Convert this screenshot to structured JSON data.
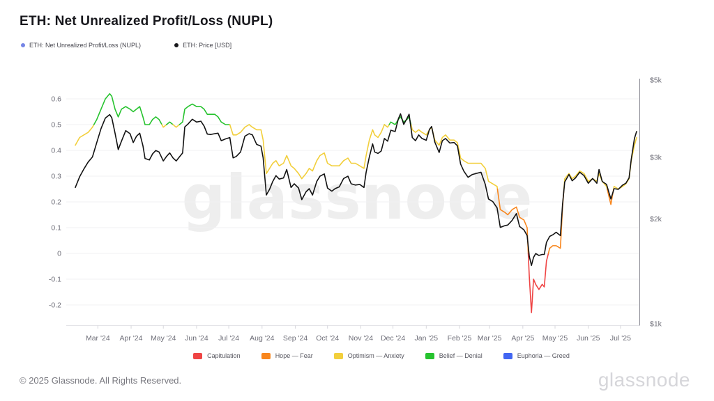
{
  "header": {
    "title": "ETH: Net Unrealized Profit/Loss (NUPL)"
  },
  "top_legend": [
    {
      "label": "ETH: Net Unrealized Profit/Loss (NUPL)",
      "color": "#7585e6"
    },
    {
      "label": "ETH: Price [USD]",
      "color": "#18181b"
    }
  ],
  "watermark": "glassnode",
  "footer": {
    "copyright": "© 2025 Glassnode. All Rights Reserved.",
    "brand": "glassnode"
  },
  "chart_data": {
    "type": "line",
    "title": "ETH: Net Unrealized Profit/Loss (NUPL)",
    "x_start": "2024-02-09",
    "x_end": "2025-07-16",
    "left_axis": {
      "label": "NUPL",
      "ticks": [
        {
          "value": 0.6,
          "label": "0.6"
        },
        {
          "value": 0.5,
          "label": "0.5"
        },
        {
          "value": 0.4,
          "label": "0.4"
        },
        {
          "value": 0.3,
          "label": "0.3"
        },
        {
          "value": 0.2,
          "label": "0.2"
        },
        {
          "value": 0.1,
          "label": "0.1"
        },
        {
          "value": 0,
          "label": "0"
        },
        {
          "value": -0.1,
          "label": "-0.1"
        },
        {
          "value": -0.2,
          "label": "-0.2"
        }
      ]
    },
    "right_axis": {
      "label": "ETH: Price [USD]",
      "scale": "log",
      "ticks": [
        {
          "value": 5000,
          "label": "$5k"
        },
        {
          "value": 3000,
          "label": "$3k"
        },
        {
          "value": 2000,
          "label": "$2k"
        },
        {
          "value": 1000,
          "label": "$1k"
        }
      ]
    },
    "x_month_ticks": [
      {
        "date": "2024-03-01",
        "label": "Mar '24"
      },
      {
        "date": "2024-04-01",
        "label": "Apr '24"
      },
      {
        "date": "2024-05-01",
        "label": "May '24"
      },
      {
        "date": "2024-06-01",
        "label": "Jun '24"
      },
      {
        "date": "2024-07-01",
        "label": "Jul '24"
      },
      {
        "date": "2024-08-01",
        "label": "Aug '24"
      },
      {
        "date": "2024-09-01",
        "label": "Sep '24"
      },
      {
        "date": "2024-10-01",
        "label": "Oct '24"
      },
      {
        "date": "2024-11-01",
        "label": "Nov '24"
      },
      {
        "date": "2024-12-01",
        "label": "Dec '24"
      },
      {
        "date": "2025-01-01",
        "label": "Jan '25"
      },
      {
        "date": "2025-02-01",
        "label": "Feb '25"
      },
      {
        "date": "2025-03-01",
        "label": "Mar '25"
      },
      {
        "date": "2025-04-01",
        "label": "Apr '25"
      },
      {
        "date": "2025-05-01",
        "label": "May '25"
      },
      {
        "date": "2025-06-01",
        "label": "Jun '25"
      },
      {
        "date": "2025-07-01",
        "label": "Jul '25"
      }
    ],
    "bands": [
      {
        "name": "Capitulation",
        "min": -1,
        "max": 0,
        "color": "#ef4444"
      },
      {
        "name": "Hope — Fear",
        "min": 0,
        "max": 0.25,
        "color": "#f8861d"
      },
      {
        "name": "Optimism — Anxiety",
        "min": 0.25,
        "max": 0.5,
        "color": "#f2cf3c"
      },
      {
        "name": "Belief — Denial",
        "min": 0.5,
        "max": 0.75,
        "color": "#27c32f"
      },
      {
        "name": "Euphoria — Greed",
        "min": 0.75,
        "max": 1,
        "color": "#4266f2"
      }
    ],
    "price_color": "#131313",
    "series_note": "points = [date, NUPL (left axis), ETH price USD (right log axis)]",
    "points": [
      [
        "2024-02-09",
        0.42,
        2460
      ],
      [
        "2024-02-13",
        0.45,
        2640
      ],
      [
        "2024-02-17",
        0.46,
        2780
      ],
      [
        "2024-02-21",
        0.47,
        2910
      ],
      [
        "2024-02-25",
        0.49,
        3010
      ],
      [
        "2024-02-29",
        0.52,
        3310
      ],
      [
        "2024-03-04",
        0.56,
        3630
      ],
      [
        "2024-03-08",
        0.6,
        3890
      ],
      [
        "2024-03-12",
        0.62,
        3980
      ],
      [
        "2024-03-14",
        0.61,
        3900
      ],
      [
        "2024-03-17",
        0.56,
        3520
      ],
      [
        "2024-03-20",
        0.53,
        3160
      ],
      [
        "2024-03-23",
        0.56,
        3340
      ],
      [
        "2024-03-27",
        0.57,
        3580
      ],
      [
        "2024-03-31",
        0.56,
        3510
      ],
      [
        "2024-04-03",
        0.55,
        3310
      ],
      [
        "2024-04-06",
        0.56,
        3450
      ],
      [
        "2024-04-09",
        0.57,
        3520
      ],
      [
        "2024-04-12",
        0.53,
        3240
      ],
      [
        "2024-04-14",
        0.5,
        2980
      ],
      [
        "2024-04-18",
        0.5,
        2950
      ],
      [
        "2024-04-21",
        0.52,
        3070
      ],
      [
        "2024-04-24",
        0.53,
        3140
      ],
      [
        "2024-04-27",
        0.52,
        3110
      ],
      [
        "2024-05-01",
        0.49,
        2930
      ],
      [
        "2024-05-04",
        0.5,
        3020
      ],
      [
        "2024-05-07",
        0.51,
        3090
      ],
      [
        "2024-05-10",
        0.5,
        2990
      ],
      [
        "2024-05-13",
        0.49,
        2930
      ],
      [
        "2024-05-16",
        0.5,
        3010
      ],
      [
        "2024-05-19",
        0.51,
        3090
      ],
      [
        "2024-05-21",
        0.56,
        3670
      ],
      [
        "2024-05-24",
        0.57,
        3740
      ],
      [
        "2024-05-28",
        0.58,
        3860
      ],
      [
        "2024-06-01",
        0.57,
        3790
      ],
      [
        "2024-06-05",
        0.57,
        3810
      ],
      [
        "2024-06-08",
        0.56,
        3690
      ],
      [
        "2024-06-11",
        0.54,
        3500
      ],
      [
        "2024-06-14",
        0.54,
        3490
      ],
      [
        "2024-06-18",
        0.54,
        3510
      ],
      [
        "2024-06-21",
        0.53,
        3520
      ],
      [
        "2024-06-24",
        0.51,
        3350
      ],
      [
        "2024-06-28",
        0.5,
        3390
      ],
      [
        "2024-07-02",
        0.5,
        3420
      ],
      [
        "2024-07-05",
        0.46,
        2990
      ],
      [
        "2024-07-08",
        0.46,
        3020
      ],
      [
        "2024-07-12",
        0.47,
        3110
      ],
      [
        "2024-07-16",
        0.49,
        3450
      ],
      [
        "2024-07-20",
        0.5,
        3510
      ],
      [
        "2024-07-23",
        0.49,
        3480
      ],
      [
        "2024-07-27",
        0.48,
        3270
      ],
      [
        "2024-07-31",
        0.48,
        3230
      ],
      [
        "2024-08-02",
        0.44,
        2990
      ],
      [
        "2024-08-05",
        0.31,
        2340
      ],
      [
        "2024-08-08",
        0.33,
        2430
      ],
      [
        "2024-08-11",
        0.35,
        2560
      ],
      [
        "2024-08-14",
        0.36,
        2660
      ],
      [
        "2024-08-17",
        0.34,
        2600
      ],
      [
        "2024-08-21",
        0.35,
        2620
      ],
      [
        "2024-08-24",
        0.38,
        2770
      ],
      [
        "2024-08-28",
        0.34,
        2460
      ],
      [
        "2024-08-31",
        0.33,
        2520
      ],
      [
        "2024-09-04",
        0.31,
        2450
      ],
      [
        "2024-09-07",
        0.29,
        2270
      ],
      [
        "2024-09-11",
        0.31,
        2390
      ],
      [
        "2024-09-14",
        0.33,
        2440
      ],
      [
        "2024-09-17",
        0.32,
        2340
      ],
      [
        "2024-09-21",
        0.36,
        2560
      ],
      [
        "2024-09-24",
        0.38,
        2650
      ],
      [
        "2024-09-28",
        0.39,
        2690
      ],
      [
        "2024-10-01",
        0.35,
        2450
      ],
      [
        "2024-10-05",
        0.34,
        2400
      ],
      [
        "2024-10-08",
        0.34,
        2440
      ],
      [
        "2024-10-12",
        0.34,
        2470
      ],
      [
        "2024-10-16",
        0.36,
        2610
      ],
      [
        "2024-10-20",
        0.37,
        2650
      ],
      [
        "2024-10-23",
        0.35,
        2520
      ],
      [
        "2024-10-27",
        0.35,
        2500
      ],
      [
        "2024-10-31",
        0.34,
        2510
      ],
      [
        "2024-11-04",
        0.33,
        2460
      ],
      [
        "2024-11-06",
        0.38,
        2720
      ],
      [
        "2024-11-09",
        0.44,
        3010
      ],
      [
        "2024-11-12",
        0.48,
        3280
      ],
      [
        "2024-11-14",
        0.46,
        3110
      ],
      [
        "2024-11-17",
        0.45,
        3080
      ],
      [
        "2024-11-20",
        0.47,
        3130
      ],
      [
        "2024-11-23",
        0.5,
        3400
      ],
      [
        "2024-11-26",
        0.49,
        3340
      ],
      [
        "2024-11-29",
        0.51,
        3590
      ],
      [
        "2024-12-03",
        0.5,
        3560
      ],
      [
        "2024-12-06",
        0.52,
        3870
      ],
      [
        "2024-12-08",
        0.53,
        4000
      ],
      [
        "2024-12-11",
        0.51,
        3730
      ],
      [
        "2024-12-14",
        0.52,
        3880
      ],
      [
        "2024-12-16",
        0.53,
        3990
      ],
      [
        "2024-12-19",
        0.48,
        3420
      ],
      [
        "2024-12-22",
        0.47,
        3350
      ],
      [
        "2024-12-25",
        0.48,
        3480
      ],
      [
        "2024-12-28",
        0.47,
        3400
      ],
      [
        "2025-01-01",
        0.46,
        3360
      ],
      [
        "2025-01-04",
        0.48,
        3610
      ],
      [
        "2025-01-06",
        0.49,
        3680
      ],
      [
        "2025-01-09",
        0.44,
        3320
      ],
      [
        "2025-01-13",
        0.42,
        3100
      ],
      [
        "2025-01-16",
        0.45,
        3350
      ],
      [
        "2025-01-19",
        0.46,
        3400
      ],
      [
        "2025-01-23",
        0.44,
        3300
      ],
      [
        "2025-01-27",
        0.44,
        3310
      ],
      [
        "2025-01-30",
        0.43,
        3240
      ],
      [
        "2025-02-02",
        0.37,
        2870
      ],
      [
        "2025-02-05",
        0.36,
        2740
      ],
      [
        "2025-02-09",
        0.35,
        2630
      ],
      [
        "2025-02-13",
        0.35,
        2680
      ],
      [
        "2025-02-17",
        0.35,
        2700
      ],
      [
        "2025-02-21",
        0.35,
        2720
      ],
      [
        "2025-02-25",
        0.33,
        2510
      ],
      [
        "2025-02-28",
        0.28,
        2280
      ],
      [
        "2025-03-04",
        0.27,
        2240
      ],
      [
        "2025-03-08",
        0.26,
        2150
      ],
      [
        "2025-03-11",
        0.17,
        1890
      ],
      [
        "2025-03-15",
        0.16,
        1910
      ],
      [
        "2025-03-18",
        0.15,
        1920
      ],
      [
        "2025-03-22",
        0.17,
        1980
      ],
      [
        "2025-03-26",
        0.18,
        2070
      ],
      [
        "2025-03-29",
        0.14,
        1900
      ],
      [
        "2025-04-02",
        0.13,
        1860
      ],
      [
        "2025-04-05",
        0.1,
        1790
      ],
      [
        "2025-04-07",
        -0.09,
        1560
      ],
      [
        "2025-04-09",
        -0.23,
        1470
      ],
      [
        "2025-04-11",
        -0.1,
        1550
      ],
      [
        "2025-04-13",
        -0.12,
        1590
      ],
      [
        "2025-04-16",
        -0.14,
        1570
      ],
      [
        "2025-04-19",
        -0.12,
        1580
      ],
      [
        "2025-04-21",
        -0.13,
        1580
      ],
      [
        "2025-04-23",
        -0.03,
        1710
      ],
      [
        "2025-04-26",
        0.02,
        1780
      ],
      [
        "2025-04-29",
        0.03,
        1800
      ],
      [
        "2025-05-02",
        0.03,
        1830
      ],
      [
        "2025-05-06",
        0.02,
        1790
      ],
      [
        "2025-05-08",
        0.18,
        2200
      ],
      [
        "2025-05-10",
        0.29,
        2550
      ],
      [
        "2025-05-14",
        0.31,
        2680
      ],
      [
        "2025-05-17",
        0.29,
        2570
      ],
      [
        "2025-05-20",
        0.3,
        2620
      ],
      [
        "2025-05-24",
        0.32,
        2720
      ],
      [
        "2025-05-28",
        0.31,
        2660
      ],
      [
        "2025-06-01",
        0.28,
        2530
      ],
      [
        "2025-06-05",
        0.29,
        2610
      ],
      [
        "2025-06-09",
        0.28,
        2530
      ],
      [
        "2025-06-11",
        0.31,
        2770
      ],
      [
        "2025-06-14",
        0.28,
        2560
      ],
      [
        "2025-06-18",
        0.26,
        2510
      ],
      [
        "2025-06-22",
        0.19,
        2280
      ],
      [
        "2025-06-25",
        0.26,
        2440
      ],
      [
        "2025-06-29",
        0.25,
        2430
      ],
      [
        "2025-07-03",
        0.26,
        2500
      ],
      [
        "2025-07-06",
        0.27,
        2530
      ],
      [
        "2025-07-09",
        0.29,
        2620
      ],
      [
        "2025-07-11",
        0.36,
        2960
      ],
      [
        "2025-07-14",
        0.42,
        3400
      ],
      [
        "2025-07-16",
        0.45,
        3560
      ]
    ]
  }
}
